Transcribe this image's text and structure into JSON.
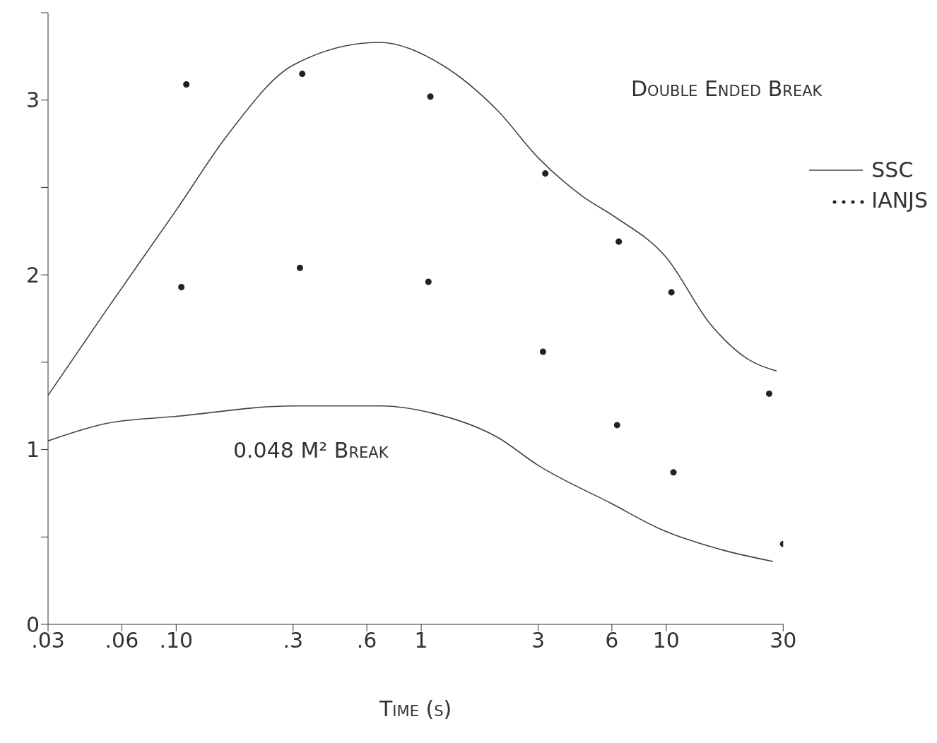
{
  "chart_data": {
    "type": "line",
    "xlabel": "Time (s)",
    "log": "x",
    "xlim": [
      0.03,
      30
    ],
    "ylim": [
      0,
      3.5
    ],
    "xticks": [
      {
        "value": 0.03,
        "label": ".03"
      },
      {
        "value": 0.06,
        "label": ".06"
      },
      {
        "value": 0.1,
        "label": ".10"
      },
      {
        "value": 0.3,
        "label": ".3"
      },
      {
        "value": 0.6,
        "label": ".6"
      },
      1,
      3,
      6,
      10,
      30
    ],
    "yticks": [
      0,
      {
        "value": 0.5,
        "label": null
      },
      1,
      {
        "value": 1.5,
        "label": null
      },
      2,
      {
        "value": 2.5,
        "label": null
      },
      3,
      {
        "value": 3.5,
        "label": null
      }
    ],
    "grid": false,
    "legend": "top right",
    "series": [
      {
        "name": "SSC",
        "color": "#444444",
        "marker": "none",
        "x": [
          0.03,
          0.052,
          0.1,
          0.164,
          0.3,
          0.67,
          1.22,
          2.05,
          3,
          4.55,
          6.2,
          10,
          15.1,
          21.4,
          28.2
        ],
        "values": [
          1.31,
          1.8,
          2.37,
          2.81,
          3.2,
          3.33,
          3.2,
          2.94,
          2.67,
          2.45,
          2.33,
          2.1,
          1.72,
          1.52,
          1.45
        ]
      },
      {
        "color": "#444444",
        "marker": "none",
        "x": [
          0.03,
          0.052,
          0.1,
          0.3,
          0.69,
          1.1,
          2.05,
          3,
          6,
          9.3,
          16.5,
          27.3
        ],
        "values": [
          1.05,
          1.15,
          1.19,
          1.25,
          1.25,
          1.21,
          1.07,
          0.91,
          0.69,
          0.55,
          0.43,
          0.36
        ]
      },
      {
        "name": "IANJS",
        "type": "scatter",
        "color": "#222222",
        "marker": "circle",
        "x": [
          0.11,
          0.327,
          1.09,
          3.21,
          6.4,
          10.5,
          26.3,
          0.105,
          0.32,
          1.07,
          3.14,
          6.3,
          10.7,
          30
        ],
        "values": [
          3.09,
          3.15,
          3.02,
          2.58,
          2.19,
          1.9,
          1.32,
          1.93,
          2.04,
          1.96,
          1.56,
          1.14,
          0.87,
          0.46
        ]
      }
    ],
    "annotations": [
      "Double Ended Break",
      "0.048 M² Break"
    ]
  }
}
